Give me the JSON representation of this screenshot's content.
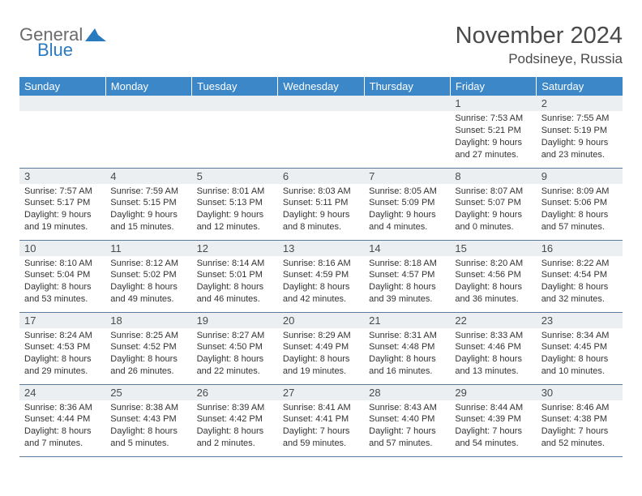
{
  "logo": {
    "top": "General",
    "bottom": "Blue"
  },
  "title": "November 2024",
  "location": "Podsineye, Russia",
  "colors": {
    "header_bg": "#3b87c8",
    "header_text": "#ffffff",
    "daynum_bg": "#eceff1",
    "text": "#4a4a4a",
    "row_border": "#5c7a99",
    "logo_gray": "#6b6b6b",
    "logo_blue": "#2a7abf"
  },
  "weekdays": [
    "Sunday",
    "Monday",
    "Tuesday",
    "Wednesday",
    "Thursday",
    "Friday",
    "Saturday"
  ],
  "weeks": [
    [
      null,
      null,
      null,
      null,
      null,
      {
        "n": "1",
        "sr": "Sunrise: 7:53 AM",
        "ss": "Sunset: 5:21 PM",
        "d1": "Daylight: 9 hours",
        "d2": "and 27 minutes."
      },
      {
        "n": "2",
        "sr": "Sunrise: 7:55 AM",
        "ss": "Sunset: 5:19 PM",
        "d1": "Daylight: 9 hours",
        "d2": "and 23 minutes."
      }
    ],
    [
      {
        "n": "3",
        "sr": "Sunrise: 7:57 AM",
        "ss": "Sunset: 5:17 PM",
        "d1": "Daylight: 9 hours",
        "d2": "and 19 minutes."
      },
      {
        "n": "4",
        "sr": "Sunrise: 7:59 AM",
        "ss": "Sunset: 5:15 PM",
        "d1": "Daylight: 9 hours",
        "d2": "and 15 minutes."
      },
      {
        "n": "5",
        "sr": "Sunrise: 8:01 AM",
        "ss": "Sunset: 5:13 PM",
        "d1": "Daylight: 9 hours",
        "d2": "and 12 minutes."
      },
      {
        "n": "6",
        "sr": "Sunrise: 8:03 AM",
        "ss": "Sunset: 5:11 PM",
        "d1": "Daylight: 9 hours",
        "d2": "and 8 minutes."
      },
      {
        "n": "7",
        "sr": "Sunrise: 8:05 AM",
        "ss": "Sunset: 5:09 PM",
        "d1": "Daylight: 9 hours",
        "d2": "and 4 minutes."
      },
      {
        "n": "8",
        "sr": "Sunrise: 8:07 AM",
        "ss": "Sunset: 5:07 PM",
        "d1": "Daylight: 9 hours",
        "d2": "and 0 minutes."
      },
      {
        "n": "9",
        "sr": "Sunrise: 8:09 AM",
        "ss": "Sunset: 5:06 PM",
        "d1": "Daylight: 8 hours",
        "d2": "and 57 minutes."
      }
    ],
    [
      {
        "n": "10",
        "sr": "Sunrise: 8:10 AM",
        "ss": "Sunset: 5:04 PM",
        "d1": "Daylight: 8 hours",
        "d2": "and 53 minutes."
      },
      {
        "n": "11",
        "sr": "Sunrise: 8:12 AM",
        "ss": "Sunset: 5:02 PM",
        "d1": "Daylight: 8 hours",
        "d2": "and 49 minutes."
      },
      {
        "n": "12",
        "sr": "Sunrise: 8:14 AM",
        "ss": "Sunset: 5:01 PM",
        "d1": "Daylight: 8 hours",
        "d2": "and 46 minutes."
      },
      {
        "n": "13",
        "sr": "Sunrise: 8:16 AM",
        "ss": "Sunset: 4:59 PM",
        "d1": "Daylight: 8 hours",
        "d2": "and 42 minutes."
      },
      {
        "n": "14",
        "sr": "Sunrise: 8:18 AM",
        "ss": "Sunset: 4:57 PM",
        "d1": "Daylight: 8 hours",
        "d2": "and 39 minutes."
      },
      {
        "n": "15",
        "sr": "Sunrise: 8:20 AM",
        "ss": "Sunset: 4:56 PM",
        "d1": "Daylight: 8 hours",
        "d2": "and 36 minutes."
      },
      {
        "n": "16",
        "sr": "Sunrise: 8:22 AM",
        "ss": "Sunset: 4:54 PM",
        "d1": "Daylight: 8 hours",
        "d2": "and 32 minutes."
      }
    ],
    [
      {
        "n": "17",
        "sr": "Sunrise: 8:24 AM",
        "ss": "Sunset: 4:53 PM",
        "d1": "Daylight: 8 hours",
        "d2": "and 29 minutes."
      },
      {
        "n": "18",
        "sr": "Sunrise: 8:25 AM",
        "ss": "Sunset: 4:52 PM",
        "d1": "Daylight: 8 hours",
        "d2": "and 26 minutes."
      },
      {
        "n": "19",
        "sr": "Sunrise: 8:27 AM",
        "ss": "Sunset: 4:50 PM",
        "d1": "Daylight: 8 hours",
        "d2": "and 22 minutes."
      },
      {
        "n": "20",
        "sr": "Sunrise: 8:29 AM",
        "ss": "Sunset: 4:49 PM",
        "d1": "Daylight: 8 hours",
        "d2": "and 19 minutes."
      },
      {
        "n": "21",
        "sr": "Sunrise: 8:31 AM",
        "ss": "Sunset: 4:48 PM",
        "d1": "Daylight: 8 hours",
        "d2": "and 16 minutes."
      },
      {
        "n": "22",
        "sr": "Sunrise: 8:33 AM",
        "ss": "Sunset: 4:46 PM",
        "d1": "Daylight: 8 hours",
        "d2": "and 13 minutes."
      },
      {
        "n": "23",
        "sr": "Sunrise: 8:34 AM",
        "ss": "Sunset: 4:45 PM",
        "d1": "Daylight: 8 hours",
        "d2": "and 10 minutes."
      }
    ],
    [
      {
        "n": "24",
        "sr": "Sunrise: 8:36 AM",
        "ss": "Sunset: 4:44 PM",
        "d1": "Daylight: 8 hours",
        "d2": "and 7 minutes."
      },
      {
        "n": "25",
        "sr": "Sunrise: 8:38 AM",
        "ss": "Sunset: 4:43 PM",
        "d1": "Daylight: 8 hours",
        "d2": "and 5 minutes."
      },
      {
        "n": "26",
        "sr": "Sunrise: 8:39 AM",
        "ss": "Sunset: 4:42 PM",
        "d1": "Daylight: 8 hours",
        "d2": "and 2 minutes."
      },
      {
        "n": "27",
        "sr": "Sunrise: 8:41 AM",
        "ss": "Sunset: 4:41 PM",
        "d1": "Daylight: 7 hours",
        "d2": "and 59 minutes."
      },
      {
        "n": "28",
        "sr": "Sunrise: 8:43 AM",
        "ss": "Sunset: 4:40 PM",
        "d1": "Daylight: 7 hours",
        "d2": "and 57 minutes."
      },
      {
        "n": "29",
        "sr": "Sunrise: 8:44 AM",
        "ss": "Sunset: 4:39 PM",
        "d1": "Daylight: 7 hours",
        "d2": "and 54 minutes."
      },
      {
        "n": "30",
        "sr": "Sunrise: 8:46 AM",
        "ss": "Sunset: 4:38 PM",
        "d1": "Daylight: 7 hours",
        "d2": "and 52 minutes."
      }
    ]
  ]
}
